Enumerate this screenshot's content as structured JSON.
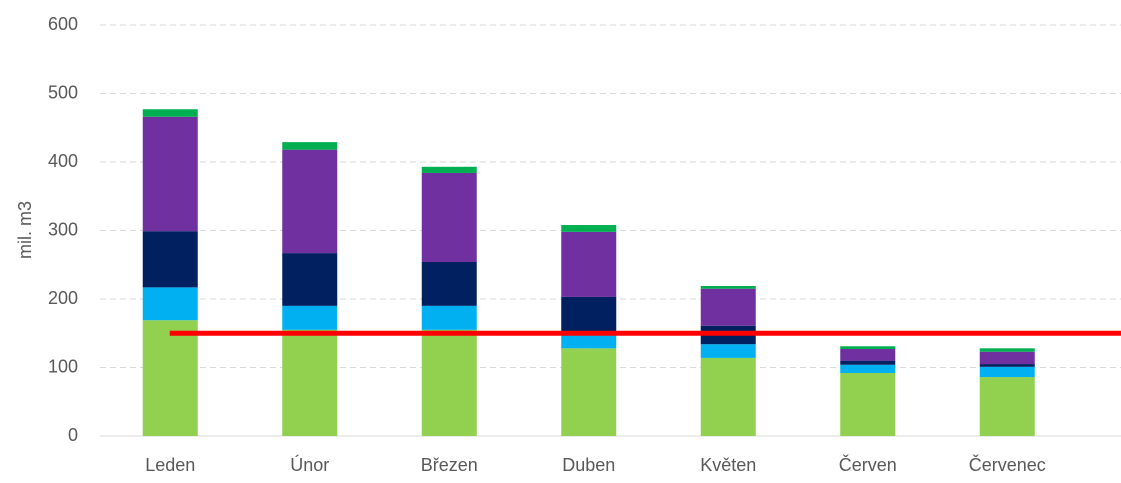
{
  "chart_data": {
    "type": "stacked_bar",
    "y_label": "mil. m3",
    "categories": [
      "Leden",
      "Únor",
      "Březen",
      "Duben",
      "Květen",
      "Červen",
      "Červenec"
    ],
    "series": [
      {
        "color": "#92d050",
        "values": [
          169,
          155,
          155,
          128,
          114,
          92,
          86
        ]
      },
      {
        "color": "#00b0f0",
        "values": [
          48,
          35,
          35,
          19,
          20,
          12,
          15
        ]
      },
      {
        "color": "#002060",
        "values": [
          82,
          77,
          64,
          56,
          27,
          6,
          4
        ]
      },
      {
        "color": "#7030a0",
        "values": [
          167,
          151,
          130,
          95,
          54,
          17,
          18
        ]
      },
      {
        "color": "#00b050",
        "values": [
          11,
          11,
          9,
          10,
          4,
          4,
          5
        ]
      }
    ],
    "reference_line": {
      "value": 150,
      "color": "#ff0000"
    },
    "ylim": [
      0,
      600
    ],
    "yticks": [
      0,
      100,
      200,
      300,
      400,
      500,
      600
    ],
    "grid": true
  }
}
